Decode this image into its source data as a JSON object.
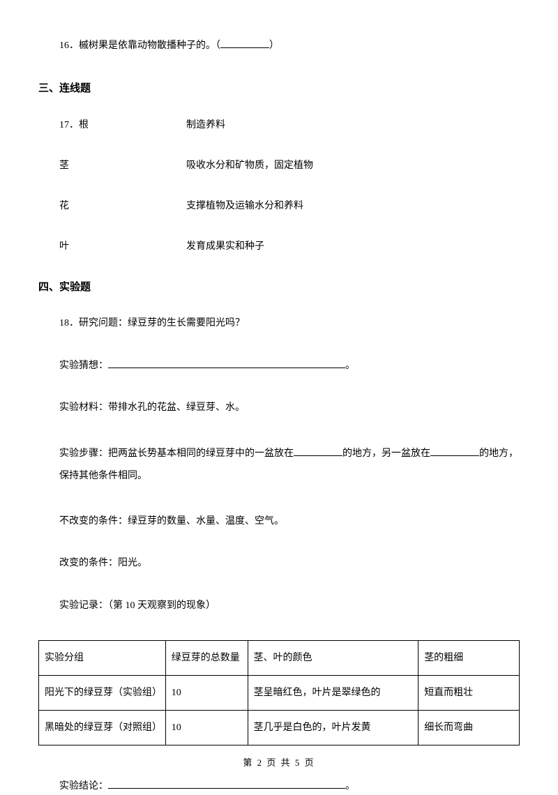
{
  "q16": {
    "text": "16．槭树果是依靠动物散播种子的。（",
    "text_end": "）"
  },
  "section3": {
    "title": "三、连线题"
  },
  "q17": {
    "num": "17．",
    "rows": [
      {
        "left": "根",
        "right": "制造养料"
      },
      {
        "left": "茎",
        "right": "吸收水分和矿物质，固定植物"
      },
      {
        "left": "花",
        "right": "支撑植物及运输水分和养料"
      },
      {
        "left": "叶",
        "right": "发育成果实和种子"
      }
    ]
  },
  "section4": {
    "title": "四、实验题"
  },
  "q18": {
    "question": "18．研究问题：绿豆芽的生长需要阳光吗？",
    "guess_label": "实验猜想：",
    "guess_end": "。",
    "materials": "实验材料：带排水孔的花盆、绿豆芽、水。",
    "steps_part1": "实验步骤：把两盆长势基本相同的绿豆芽中的一盆放在",
    "steps_part2": "的地方，另一盆放在",
    "steps_part3": "的地方，保持其他条件相同。",
    "unchanged": "不改变的条件：绿豆芽的数量、水量、温度、空气。",
    "changed": "改变的条件：阳光。",
    "record": "实验记录：（第 10 天观察到的现象）",
    "conclusion_label": "实验结论：",
    "conclusion_end": "。"
  },
  "table": {
    "headers": [
      "实验分组",
      "绿豆芽的总数量",
      "茎、叶的颜色",
      "茎的粗细"
    ],
    "rows": [
      [
        "阳光下的绿豆芽（实验组）",
        "10",
        "茎呈暗红色，叶片是翠绿色的",
        "短直而粗壮"
      ],
      [
        "黑暗处的绿豆芽（对照组）",
        "10",
        "茎几乎是白色的，叶片发黄",
        "细长而弯曲"
      ]
    ]
  },
  "footer": {
    "text": "第 2 页 共 5 页"
  },
  "colors": {
    "text": "#000000",
    "background": "#ffffff",
    "border": "#000000"
  }
}
